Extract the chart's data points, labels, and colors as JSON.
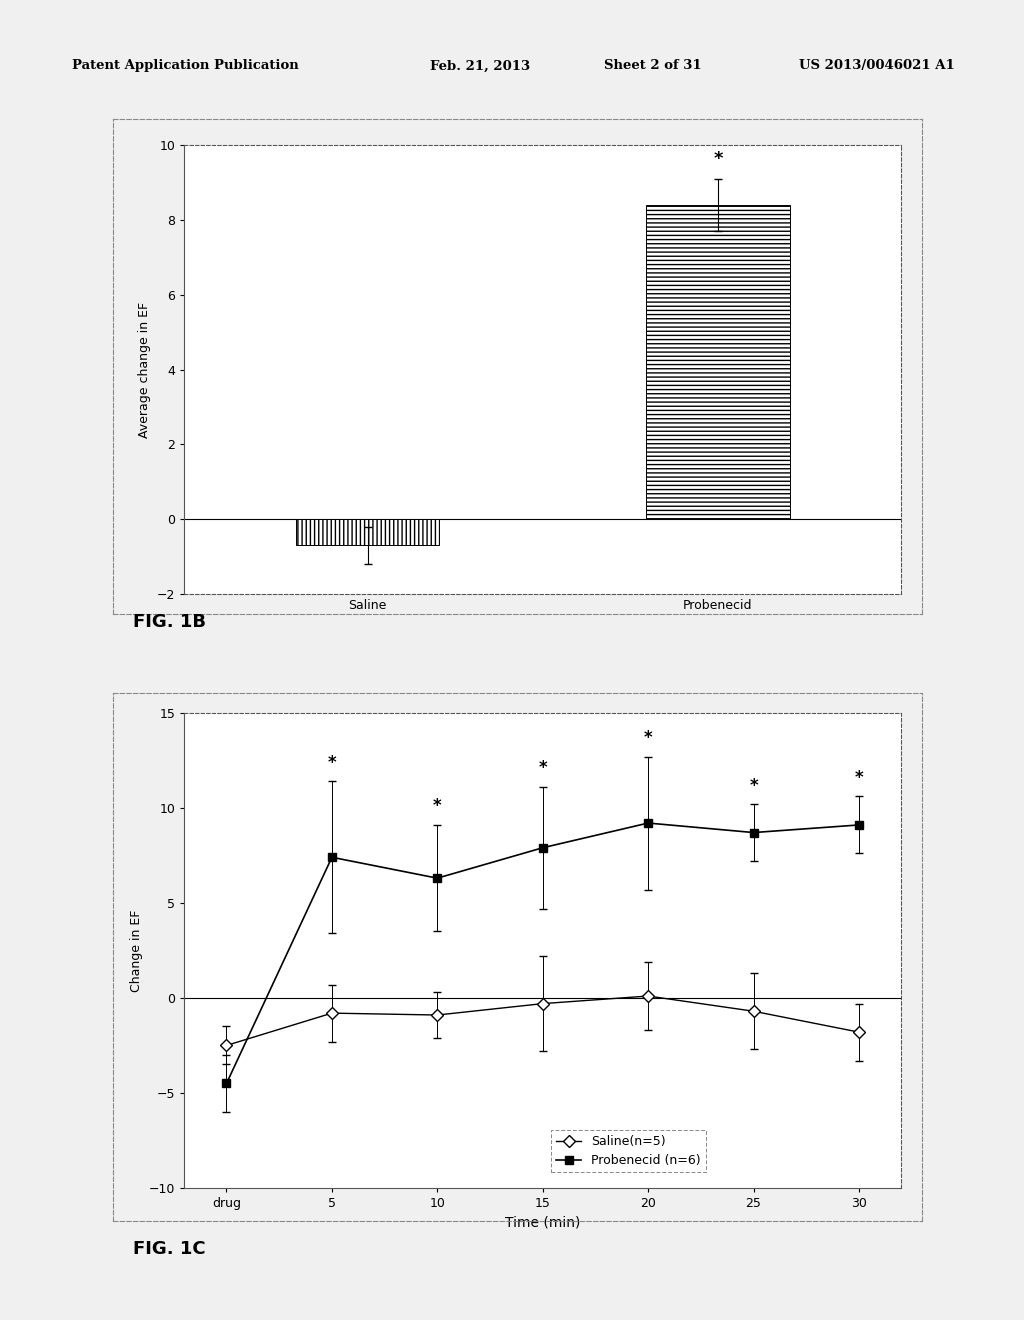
{
  "header_text": "Patent Application Publication",
  "header_date": "Feb. 21, 2013",
  "header_sheet": "Sheet 2 of 31",
  "header_patent": "US 2013/0046021 A1",
  "fig1b_ylabel": "Average change in EF",
  "fig1b_categories": [
    "Saline",
    "Probenecid"
  ],
  "fig1b_values": [
    -0.7,
    8.4
  ],
  "fig1b_errors": [
    0.5,
    0.7
  ],
  "fig1b_ylim": [
    -2,
    10
  ],
  "fig1b_yticks": [
    -2,
    0,
    2,
    4,
    6,
    8,
    10
  ],
  "fig1b_label": "FIG. 1B",
  "fig1c_ylabel": "Change in EF",
  "fig1c_xlabel": "Time (min)",
  "fig1c_label": "FIG. 1C",
  "fig1c_ylim": [
    -10,
    15
  ],
  "fig1c_yticks": [
    -10,
    -5,
    0,
    5,
    10,
    15
  ],
  "fig1c_xticklabels": [
    "drug",
    "5",
    "10",
    "15",
    "20",
    "25",
    "30"
  ],
  "saline_y": [
    -2.5,
    -0.8,
    -0.9,
    -0.3,
    0.1,
    -0.7,
    -1.8
  ],
  "saline_err": [
    1.0,
    1.5,
    1.2,
    2.5,
    1.8,
    2.0,
    1.5
  ],
  "probenecid_y": [
    -4.5,
    7.4,
    6.3,
    7.9,
    9.2,
    8.7,
    9.1
  ],
  "probenecid_err": [
    1.5,
    4.0,
    2.8,
    3.2,
    3.5,
    1.5,
    1.5
  ],
  "bg_color": "#e8e8e8",
  "page_bg": "#f0f0f0",
  "plot_bg_color": "#ffffff"
}
